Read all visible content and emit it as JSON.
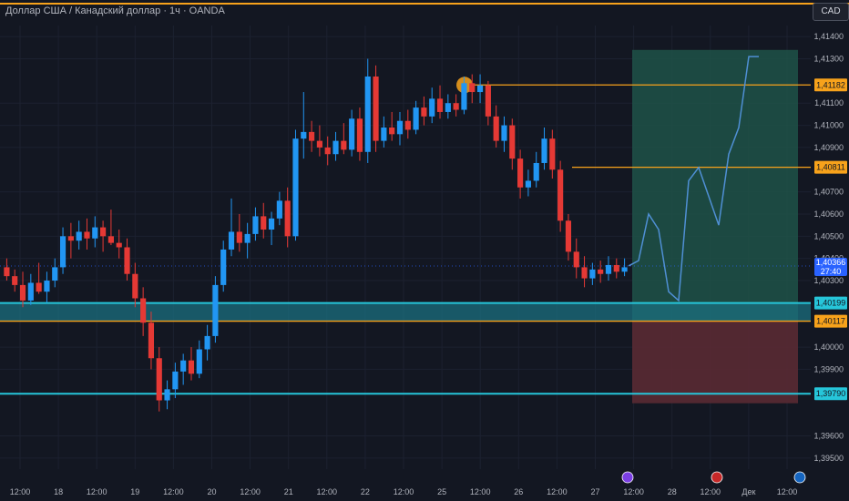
{
  "header": {
    "title": "Доллар США / Канадский доллар · 1ч · OANDA",
    "currency": "CAD"
  },
  "colors": {
    "background": "#131722",
    "up_candle": "#2196f3",
    "down_candle": "#e53935",
    "orange_line": "#f7a21b",
    "cyan_line": "#26c6da",
    "target_zone": "#1f5248",
    "stop_zone": "#5a2a33",
    "price_badge": "#2962ff"
  },
  "chart_data": {
    "type": "candlestick",
    "ylim": [
      1.3945,
      1.4145
    ],
    "y_ticks": [
      "1,41400",
      "1,41300",
      "1,41100",
      "1,41000",
      "1,40900",
      "1,40700",
      "1,40600",
      "1,40500",
      "1,40400",
      "1,40300",
      "1,40000",
      "1,39900",
      "1,39600",
      "1,39500"
    ],
    "x_ticks": [
      "12:00",
      "18",
      "12:00",
      "19",
      "12:00",
      "20",
      "12:00",
      "21",
      "12:00",
      "22",
      "12:00",
      "25",
      "12:00",
      "26",
      "12:00",
      "27",
      "12:00",
      "28",
      "12:00",
      "Дек",
      "12:00"
    ],
    "levels": [
      {
        "price": 1.41182,
        "label": "1,41182",
        "color": "orange"
      },
      {
        "price": 1.40811,
        "label": "1,40811",
        "color": "orange"
      },
      {
        "price": 1.40199,
        "label": "1,40199",
        "color": "cyan"
      },
      {
        "price": 1.40117,
        "label": "1,40117",
        "color": "orange"
      },
      {
        "price": 1.3979,
        "label": "1,39790",
        "color": "cyan"
      }
    ],
    "current_price": {
      "value": 1.40366,
      "label": "1,40366",
      "countdown": "27:40"
    },
    "candles": [
      [
        1.4036,
        1.404,
        1.403,
        1.4032
      ],
      [
        1.4032,
        1.4035,
        1.4025,
        1.4028
      ],
      [
        1.4028,
        1.4034,
        1.4018,
        1.4021
      ],
      [
        1.4021,
        1.4033,
        1.4019,
        1.4029
      ],
      [
        1.4029,
        1.4038,
        1.4024,
        1.4025
      ],
      [
        1.4025,
        1.4034,
        1.402,
        1.403
      ],
      [
        1.403,
        1.404,
        1.4027,
        1.4036
      ],
      [
        1.4036,
        1.4054,
        1.4033,
        1.405
      ],
      [
        1.405,
        1.4056,
        1.404,
        1.4048
      ],
      [
        1.4048,
        1.4057,
        1.4044,
        1.4052
      ],
      [
        1.4052,
        1.4058,
        1.4044,
        1.4049
      ],
      [
        1.4049,
        1.4059,
        1.4045,
        1.4054
      ],
      [
        1.4054,
        1.4057,
        1.4043,
        1.405
      ],
      [
        1.405,
        1.4062,
        1.4046,
        1.4047
      ],
      [
        1.4047,
        1.4053,
        1.404,
        1.4045
      ],
      [
        1.4045,
        1.4049,
        1.403,
        1.4033
      ],
      [
        1.4033,
        1.4038,
        1.4018,
        1.4022
      ],
      [
        1.4022,
        1.4027,
        1.4005,
        1.4011
      ],
      [
        1.4011,
        1.4016,
        1.399,
        1.3995
      ],
      [
        1.3995,
        1.4,
        1.3971,
        1.3976
      ],
      [
        1.3976,
        1.3985,
        1.3972,
        1.3981
      ],
      [
        1.3981,
        1.3993,
        1.3977,
        1.3989
      ],
      [
        1.3989,
        1.3997,
        1.3983,
        1.3994
      ],
      [
        1.3994,
        1.4,
        1.3985,
        1.3988
      ],
      [
        1.3988,
        1.4003,
        1.3986,
        1.3999
      ],
      [
        1.3999,
        1.401,
        1.3994,
        1.4005
      ],
      [
        1.4005,
        1.4032,
        1.4002,
        1.4028
      ],
      [
        1.4028,
        1.4048,
        1.4025,
        1.4044
      ],
      [
        1.4044,
        1.4067,
        1.4041,
        1.4052
      ],
      [
        1.4052,
        1.406,
        1.4043,
        1.4047
      ],
      [
        1.4047,
        1.4056,
        1.404,
        1.4051
      ],
      [
        1.4051,
        1.4063,
        1.4048,
        1.4059
      ],
      [
        1.4059,
        1.4065,
        1.4049,
        1.4053
      ],
      [
        1.4053,
        1.4061,
        1.4046,
        1.4058
      ],
      [
        1.4058,
        1.407,
        1.4055,
        1.4066
      ],
      [
        1.4066,
        1.4072,
        1.4045,
        1.405
      ],
      [
        1.405,
        1.4098,
        1.4048,
        1.4094
      ],
      [
        1.4094,
        1.4115,
        1.4085,
        1.4097
      ],
      [
        1.4097,
        1.4102,
        1.4088,
        1.4093
      ],
      [
        1.4093,
        1.41,
        1.4086,
        1.409
      ],
      [
        1.409,
        1.4095,
        1.4082,
        1.4087
      ],
      [
        1.4087,
        1.4097,
        1.4084,
        1.4093
      ],
      [
        1.4093,
        1.4101,
        1.4087,
        1.4089
      ],
      [
        1.4089,
        1.4107,
        1.4086,
        1.4103
      ],
      [
        1.4103,
        1.4108,
        1.4084,
        1.4088
      ],
      [
        1.4088,
        1.413,
        1.4083,
        1.4122
      ],
      [
        1.4122,
        1.4127,
        1.4088,
        1.4093
      ],
      [
        1.4093,
        1.4104,
        1.409,
        1.4099
      ],
      [
        1.4099,
        1.4106,
        1.4093,
        1.4096
      ],
      [
        1.4096,
        1.4106,
        1.4091,
        1.4102
      ],
      [
        1.4102,
        1.4107,
        1.4094,
        1.4098
      ],
      [
        1.4098,
        1.4111,
        1.4096,
        1.4108
      ],
      [
        1.4108,
        1.4113,
        1.41,
        1.4104
      ],
      [
        1.4104,
        1.4117,
        1.4101,
        1.4112
      ],
      [
        1.4112,
        1.4118,
        1.4103,
        1.4106
      ],
      [
        1.4106,
        1.4114,
        1.4103,
        1.411
      ],
      [
        1.411,
        1.4114,
        1.4104,
        1.4107
      ],
      [
        1.4107,
        1.4122,
        1.4105,
        1.4119
      ],
      [
        1.4119,
        1.4123,
        1.411,
        1.4115
      ],
      [
        1.4115,
        1.4123,
        1.411,
        1.4118
      ],
      [
        1.4118,
        1.412,
        1.41,
        1.4104
      ],
      [
        1.4104,
        1.4109,
        1.409,
        1.4093
      ],
      [
        1.4093,
        1.4104,
        1.4088,
        1.41
      ],
      [
        1.41,
        1.4103,
        1.408,
        1.4085
      ],
      [
        1.4085,
        1.4089,
        1.4067,
        1.4072
      ],
      [
        1.4072,
        1.408,
        1.4068,
        1.4075
      ],
      [
        1.4075,
        1.4088,
        1.4072,
        1.4083
      ],
      [
        1.4083,
        1.4099,
        1.408,
        1.4094
      ],
      [
        1.4094,
        1.4098,
        1.4076,
        1.408
      ],
      [
        1.408,
        1.4084,
        1.4052,
        1.4057
      ],
      [
        1.4057,
        1.406,
        1.4039,
        1.4043
      ],
      [
        1.4043,
        1.4049,
        1.4031,
        1.4036
      ],
      [
        1.4036,
        1.4041,
        1.4027,
        1.4031
      ],
      [
        1.4031,
        1.4038,
        1.4028,
        1.4035
      ],
      [
        1.4035,
        1.4039,
        1.4029,
        1.4033
      ],
      [
        1.4033,
        1.4041,
        1.403,
        1.4037
      ],
      [
        1.4037,
        1.404,
        1.4031,
        1.4034
      ],
      [
        1.4034,
        1.404,
        1.4032,
        1.4036
      ]
    ],
    "projection": [
      [
        1.40366,
        1.4039
      ],
      [
        1.406,
        1.4053
      ],
      [
        1.4025,
        1.4021
      ],
      [
        1.4075,
        1.4081
      ],
      [
        1.4068,
        1.4055
      ],
      [
        1.4087,
        1.4099
      ],
      [
        1.4131,
        1.4131
      ]
    ],
    "trade_zone": {
      "entry": 1.40117,
      "target": 1.4134,
      "stop": 1.39747
    }
  }
}
